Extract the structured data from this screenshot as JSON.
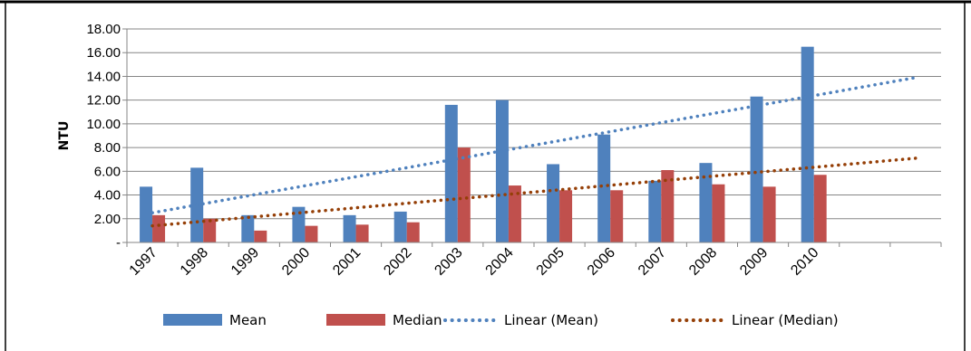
{
  "chart_data": {
    "type": "bar",
    "title": "",
    "xlabel": "",
    "ylabel": "NTU",
    "ylim": [
      0,
      18
    ],
    "y_ticks": [
      {
        "value": 0,
        "label": "-"
      },
      {
        "value": 2,
        "label": "2.00"
      },
      {
        "value": 4,
        "label": "4.00"
      },
      {
        "value": 6,
        "label": "6.00"
      },
      {
        "value": 8,
        "label": "8.00"
      },
      {
        "value": 10,
        "label": "10.00"
      },
      {
        "value": 12,
        "label": "12.00"
      },
      {
        "value": 14,
        "label": "14.00"
      },
      {
        "value": 16,
        "label": "16.00"
      },
      {
        "value": 18,
        "label": "18.00"
      }
    ],
    "categories": [
      "1997",
      "1998",
      "1999",
      "2000",
      "2001",
      "2002",
      "2003",
      "2004",
      "2005",
      "2006",
      "2007",
      "2008",
      "2009",
      "2010",
      "",
      ""
    ],
    "grid": "horizontal",
    "legend_position": "bottom",
    "series": [
      {
        "name": "Mean",
        "color": "#4F81BD",
        "values": [
          4.7,
          6.3,
          2.3,
          3.0,
          2.3,
          2.6,
          11.6,
          12.0,
          6.6,
          9.1,
          5.2,
          6.7,
          12.3,
          16.5,
          null,
          null
        ]
      },
      {
        "name": "Median",
        "color": "#C0504D",
        "values": [
          2.3,
          2.0,
          1.0,
          1.4,
          1.5,
          1.7,
          8.0,
          4.8,
          4.4,
          4.4,
          6.1,
          4.9,
          4.7,
          5.7,
          null,
          null
        ]
      }
    ],
    "trendlines": [
      {
        "name": "Linear (Mean)",
        "color": "#4F81BD",
        "style": "dotted",
        "start": 2.5,
        "end": 13.9
      },
      {
        "name": "Linear (Median)",
        "color": "#953F07",
        "style": "dotted",
        "start": 1.4,
        "end": 7.1
      }
    ]
  }
}
